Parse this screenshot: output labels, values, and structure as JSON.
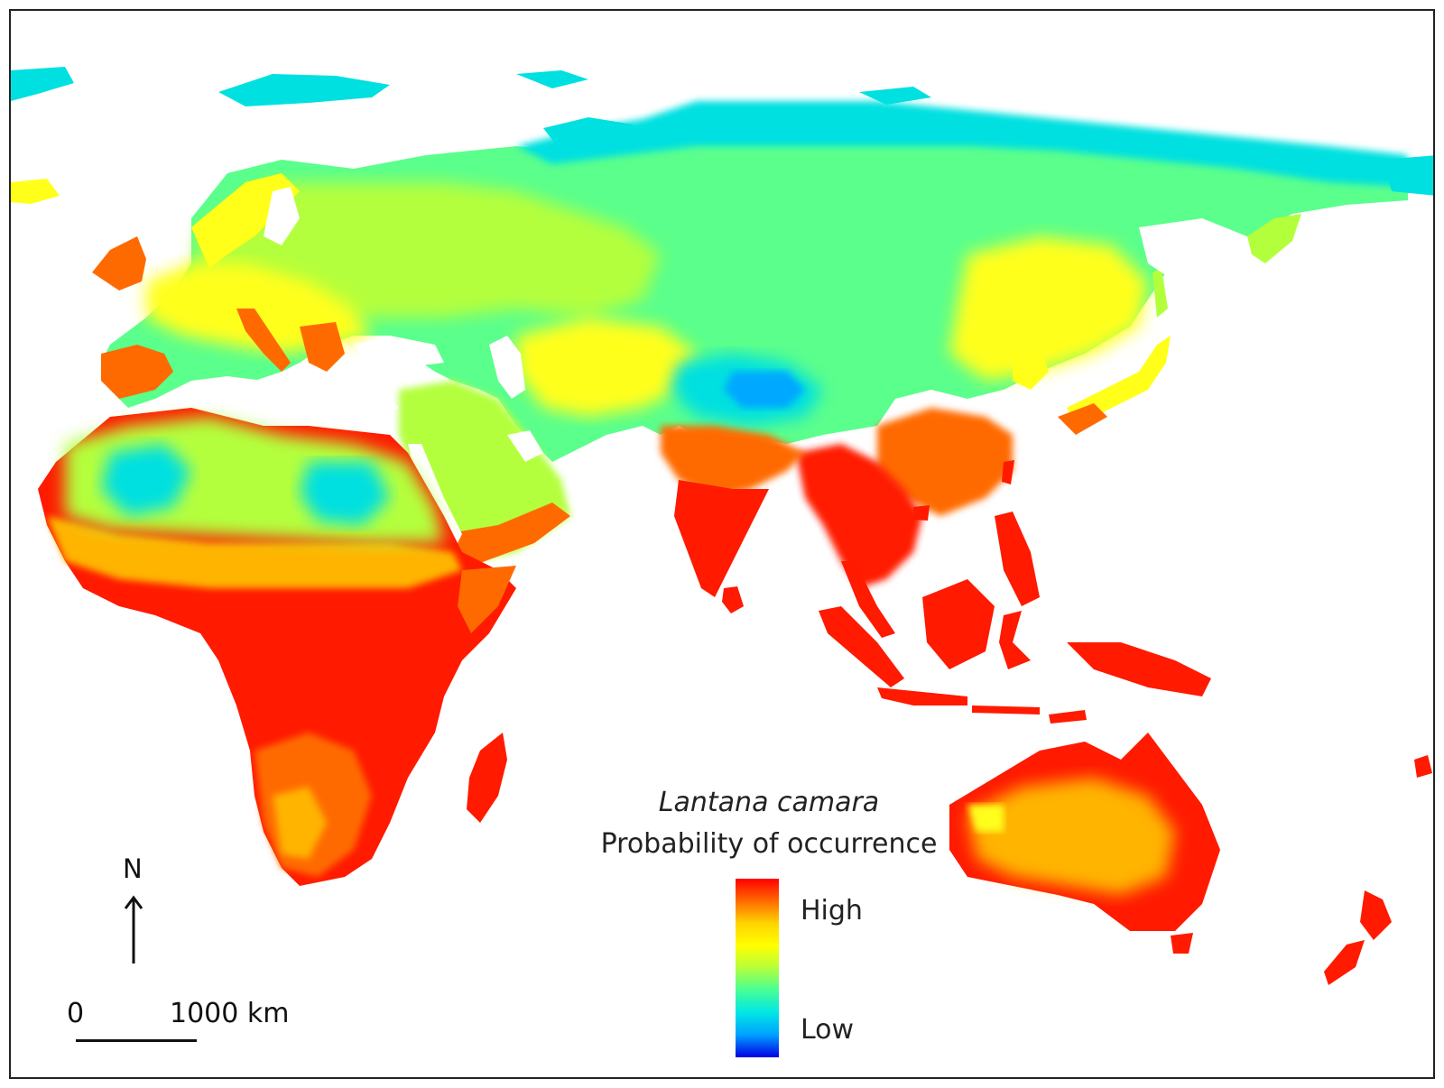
{
  "legend": {
    "title": "Lantana camara",
    "subtitle": "Probability of occurrence",
    "high_label": "High",
    "low_label": "Low",
    "ramp_colors": [
      "#ff0000",
      "#ff6a00",
      "#ffd400",
      "#ffff00",
      "#b4ff3c",
      "#46ff96",
      "#00e6e6",
      "#00a0ff",
      "#0000e6"
    ]
  },
  "north": {
    "label": "N"
  },
  "scale": {
    "zero_label": "0",
    "distance_label": "1000 km"
  },
  "colors": {
    "very_high": "#ff1a00",
    "high": "#ff6a00",
    "mid_high": "#ffb400",
    "mid": "#ffff1a",
    "mid_low": "#b4ff3c",
    "low": "#5aff8c",
    "very_low": "#00e0e0",
    "lowest": "#00a8ff"
  }
}
